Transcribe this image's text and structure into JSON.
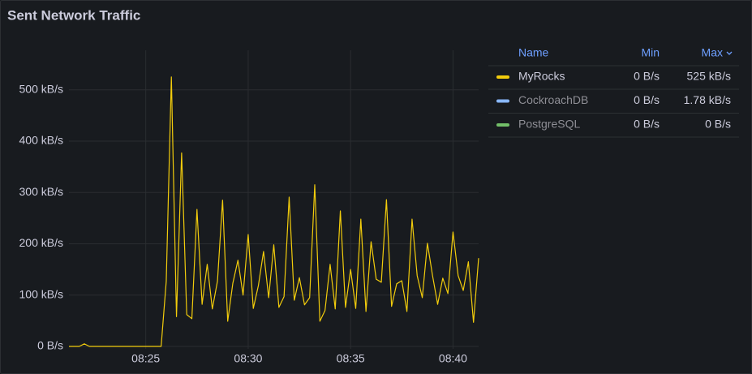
{
  "chart_data": {
    "type": "line",
    "title": "Sent Network Traffic",
    "x": [
      21.25,
      21.5,
      21.75,
      22,
      22.25,
      22.5,
      22.75,
      23,
      23.25,
      23.5,
      23.75,
      24,
      24.25,
      24.5,
      24.75,
      25,
      25.25,
      25.5,
      25.75,
      26,
      26.25,
      26.5,
      26.75,
      27,
      27.25,
      27.5,
      27.75,
      28,
      28.25,
      28.5,
      28.75,
      29,
      29.25,
      29.5,
      29.75,
      30,
      30.25,
      30.5,
      30.75,
      31,
      31.25,
      31.5,
      31.75,
      32,
      32.25,
      32.5,
      32.75,
      33,
      33.25,
      33.5,
      33.75,
      34,
      34.25,
      34.5,
      34.75,
      35,
      35.25,
      35.5,
      35.75,
      36,
      36.25,
      36.5,
      36.75,
      37,
      37.25,
      37.5,
      37.75,
      38,
      38.25,
      38.5,
      38.75,
      39,
      39.25,
      39.5,
      39.75,
      40,
      40.25,
      40.5,
      40.75,
      41,
      41.25
    ],
    "xlim": [
      21.25,
      41.25
    ],
    "xticks": [
      {
        "value": 25,
        "label": "08:25"
      },
      {
        "value": 30,
        "label": "08:30"
      },
      {
        "value": 35,
        "label": "08:35"
      },
      {
        "value": 40,
        "label": "08:40"
      }
    ],
    "ylim": [
      0,
      577
    ],
    "yticks": [
      {
        "value": 0,
        "label": "0 B/s"
      },
      {
        "value": 100,
        "label": "100 kB/s"
      },
      {
        "value": 200,
        "label": "200 kB/s"
      },
      {
        "value": 300,
        "label": "300 kB/s"
      },
      {
        "value": 400,
        "label": "400 kB/s"
      },
      {
        "value": 500,
        "label": "500 kB/s"
      }
    ],
    "grid": true,
    "legend": {
      "position": "right",
      "columns": [
        "Name",
        "Min",
        "Max"
      ]
    },
    "series": [
      {
        "name": "MyRocks",
        "color": "#f2cc0c",
        "hidden": false,
        "min": {
          "value": 0,
          "label": "0 B/s"
        },
        "max": {
          "value": 525,
          "label": "525 kB/s"
        },
        "values": [
          0,
          0,
          0,
          5,
          0,
          0,
          0,
          0,
          0,
          0,
          0,
          0,
          0,
          0,
          0,
          0,
          0,
          0,
          0,
          127,
          525,
          58,
          377,
          62,
          54,
          267,
          82,
          160,
          73,
          127,
          285,
          49,
          123,
          168,
          100,
          218,
          74,
          119,
          185,
          95,
          198,
          76,
          97,
          291,
          90,
          134,
          81,
          95,
          315,
          49,
          70,
          160,
          73,
          264,
          76,
          150,
          74,
          248,
          68,
          204,
          131,
          125,
          286,
          78,
          122,
          128,
          68,
          248,
          138,
          95,
          201,
          138,
          82,
          133,
          103,
          223,
          138,
          109,
          165,
          47,
          172
        ]
      },
      {
        "name": "CockroachDB",
        "color": "#8ab8ff",
        "hidden": true,
        "min": {
          "value": 0,
          "label": "0 B/s"
        },
        "max": {
          "value": 1.78,
          "label": "1.78 kB/s"
        }
      },
      {
        "name": "PostgreSQL",
        "color": "#73bf69",
        "hidden": true,
        "min": {
          "value": 0,
          "label": "0 B/s"
        },
        "max": {
          "value": 0,
          "label": "0 B/s"
        }
      }
    ]
  }
}
